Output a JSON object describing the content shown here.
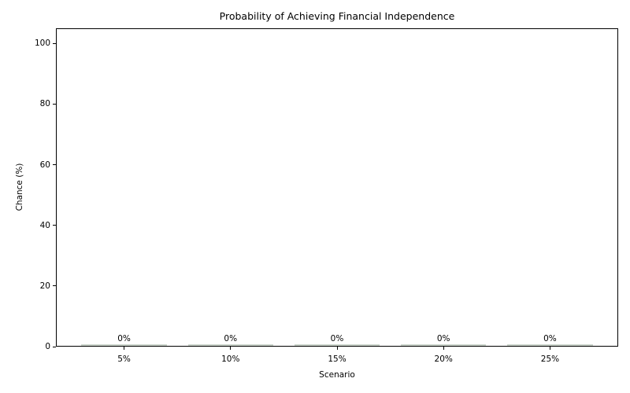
{
  "chart_data": {
    "type": "bar",
    "title": "Probability of Achieving Financial Independence",
    "xlabel": "Scenario",
    "ylabel": "Chance (%)",
    "categories": [
      "5%",
      "10%",
      "15%",
      "20%",
      "25%"
    ],
    "values": [
      0,
      0,
      0,
      0,
      0
    ],
    "bar_labels": [
      "0%",
      "0%",
      "0%",
      "0%",
      "0%"
    ],
    "yticks": [
      0,
      20,
      40,
      60,
      80,
      100
    ],
    "ylim": [
      0,
      105
    ],
    "grid": false,
    "legend": null,
    "bar_color": "#ccd5cc",
    "text_color": "#000000",
    "axis_color": "#000000"
  }
}
